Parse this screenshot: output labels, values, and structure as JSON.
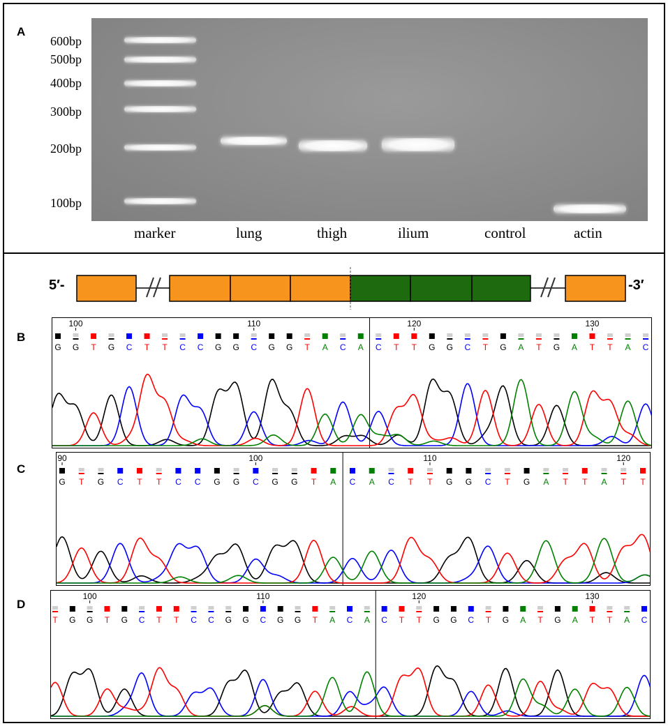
{
  "panels": {
    "A": "A",
    "B": "B",
    "C": "C",
    "D": "D"
  },
  "gel": {
    "size_labels": [
      "600bp",
      "500bp",
      "400bp",
      "300bp",
      "200bp",
      "100bp"
    ],
    "lanes": [
      "marker",
      "lung",
      "thigh",
      "ilium",
      "control",
      "actin"
    ]
  },
  "schematic": {
    "five_prime": "5′-",
    "three_prime": "-3′",
    "colors": {
      "exon_orange": "#f7941d",
      "exon_green": "#1e6b0f"
    }
  },
  "base_colors": {
    "A": "#008000",
    "C": "#0000ff",
    "G": "#000000",
    "T": "#ff0000"
  },
  "traces": [
    {
      "panel": "B",
      "tick_labels": [
        "100",
        "110",
        "120",
        "130"
      ],
      "sequence": "GGTGCTTCCGGCGGTACACTTGGCTGATGATTAC"
    },
    {
      "panel": "C",
      "tick_labels": [
        "90",
        "100",
        "110",
        "120"
      ],
      "sequence": "GTGCTTCCGGCGGTACACTTGGCTGATTATT"
    },
    {
      "panel": "D",
      "tick_labels": [
        "100",
        "110",
        "120",
        "130"
      ],
      "sequence": "TGGTGCTTCCGGCGGTACACTTGGCTGATGATTAC"
    }
  ]
}
